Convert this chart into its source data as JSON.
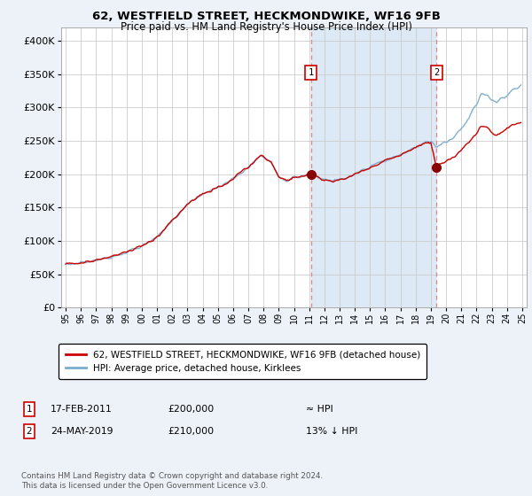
{
  "title": "62, WESTFIELD STREET, HECKMONDWIKE, WF16 9FB",
  "subtitle": "Price paid vs. HM Land Registry's House Price Index (HPI)",
  "legend_line1": "62, WESTFIELD STREET, HECKMONDWIKE, WF16 9FB (detached house)",
  "legend_line2": "HPI: Average price, detached house, Kirklees",
  "annotation1_date": "17-FEB-2011",
  "annotation1_price": "£200,000",
  "annotation1_hpi": "≈ HPI",
  "annotation2_date": "24-MAY-2019",
  "annotation2_price": "£210,000",
  "annotation2_hpi": "13% ↓ HPI",
  "footer": "Contains HM Land Registry data © Crown copyright and database right 2024.\nThis data is licensed under the Open Government Licence v3.0.",
  "bg_color": "#edf2f8",
  "plot_bg_color": "#ffffff",
  "grid_color": "#cccccc",
  "red_color": "#cc0000",
  "blue_color": "#7aacce",
  "shade_color": "#ddeaf5",
  "marker_color": "#880000",
  "vline_color": "#dd8888",
  "box_edge_color": "#cc0000",
  "ylim_max": 420000,
  "yticks": [
    0,
    50000,
    100000,
    150000,
    200000,
    250000,
    300000,
    350000,
    400000
  ],
  "start_year": 1995,
  "end_year": 2025,
  "purchase1_decimal_year": 2011.12,
  "purchase2_decimal_year": 2019.38,
  "purchase1_price": 200000,
  "purchase2_price": 210000,
  "hpi_key_points": [
    [
      1995.0,
      65000
    ],
    [
      1996.0,
      67000
    ],
    [
      1997.0,
      71000
    ],
    [
      1998.0,
      76000
    ],
    [
      1999.0,
      83000
    ],
    [
      2000.0,
      92000
    ],
    [
      2001.0,
      105000
    ],
    [
      2002.0,
      130000
    ],
    [
      2003.0,
      155000
    ],
    [
      2004.0,
      170000
    ],
    [
      2005.0,
      180000
    ],
    [
      2006.0,
      193000
    ],
    [
      2007.0,
      210000
    ],
    [
      2007.8,
      228000
    ],
    [
      2008.5,
      218000
    ],
    [
      2009.0,
      196000
    ],
    [
      2009.5,
      190000
    ],
    [
      2010.0,
      195000
    ],
    [
      2010.5,
      197000
    ],
    [
      2011.12,
      200000
    ],
    [
      2011.5,
      196000
    ],
    [
      2012.0,
      191000
    ],
    [
      2012.5,
      189000
    ],
    [
      2013.0,
      192000
    ],
    [
      2013.5,
      194000
    ],
    [
      2014.0,
      200000
    ],
    [
      2014.5,
      205000
    ],
    [
      2015.0,
      210000
    ],
    [
      2015.5,
      215000
    ],
    [
      2016.0,
      220000
    ],
    [
      2016.5,
      224000
    ],
    [
      2017.0,
      228000
    ],
    [
      2017.5,
      234000
    ],
    [
      2018.0,
      240000
    ],
    [
      2018.5,
      246000
    ],
    [
      2019.0,
      248000
    ],
    [
      2019.38,
      241000
    ],
    [
      2019.5,
      244000
    ],
    [
      2020.0,
      248000
    ],
    [
      2020.5,
      255000
    ],
    [
      2021.0,
      268000
    ],
    [
      2021.5,
      285000
    ],
    [
      2022.0,
      305000
    ],
    [
      2022.3,
      320000
    ],
    [
      2022.7,
      318000
    ],
    [
      2023.0,
      312000
    ],
    [
      2023.3,
      308000
    ],
    [
      2023.7,
      314000
    ],
    [
      2024.0,
      318000
    ],
    [
      2024.3,
      325000
    ],
    [
      2024.7,
      330000
    ],
    [
      2025.0,
      335000
    ]
  ],
  "red_key_points": [
    [
      1995.0,
      65000
    ],
    [
      1996.0,
      67000
    ],
    [
      1997.0,
      71000
    ],
    [
      1998.0,
      76000
    ],
    [
      1999.0,
      83000
    ],
    [
      2000.0,
      92000
    ],
    [
      2001.0,
      105000
    ],
    [
      2002.0,
      130000
    ],
    [
      2003.0,
      155000
    ],
    [
      2004.0,
      170000
    ],
    [
      2005.0,
      180000
    ],
    [
      2006.0,
      193000
    ],
    [
      2007.0,
      210000
    ],
    [
      2007.8,
      228000
    ],
    [
      2008.5,
      218000
    ],
    [
      2009.0,
      196000
    ],
    [
      2009.5,
      190000
    ],
    [
      2010.0,
      195000
    ],
    [
      2010.5,
      197000
    ],
    [
      2011.12,
      200000
    ],
    [
      2011.5,
      196000
    ],
    [
      2012.0,
      191000
    ],
    [
      2012.5,
      189000
    ],
    [
      2013.0,
      192000
    ],
    [
      2013.5,
      194000
    ],
    [
      2014.0,
      200000
    ],
    [
      2014.5,
      205000
    ],
    [
      2015.0,
      210000
    ],
    [
      2015.5,
      215000
    ],
    [
      2016.0,
      220000
    ],
    [
      2016.5,
      224000
    ],
    [
      2017.0,
      228000
    ],
    [
      2017.5,
      234000
    ],
    [
      2018.0,
      240000
    ],
    [
      2018.5,
      246000
    ],
    [
      2019.0,
      248000
    ],
    [
      2019.38,
      210000
    ],
    [
      2019.5,
      214000
    ],
    [
      2020.0,
      218000
    ],
    [
      2020.5,
      225000
    ],
    [
      2021.0,
      235000
    ],
    [
      2021.5,
      248000
    ],
    [
      2022.0,
      262000
    ],
    [
      2022.3,
      272000
    ],
    [
      2022.7,
      270000
    ],
    [
      2023.0,
      262000
    ],
    [
      2023.3,
      258000
    ],
    [
      2023.7,
      264000
    ],
    [
      2024.0,
      268000
    ],
    [
      2024.3,
      272000
    ],
    [
      2024.7,
      276000
    ],
    [
      2025.0,
      278000
    ]
  ]
}
